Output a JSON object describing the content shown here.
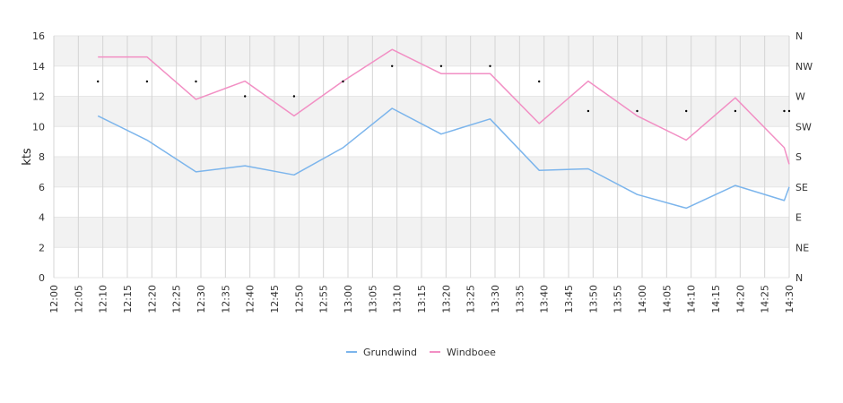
{
  "chart_data": {
    "type": "line",
    "ylabel": "kts",
    "ylim": [
      0,
      16
    ],
    "yticks": [
      "0",
      "2",
      "4",
      "6",
      "8",
      "10",
      "12",
      "14",
      "16"
    ],
    "x_ticks": [
      "12:00",
      "12:05",
      "12:10",
      "12:15",
      "12:20",
      "12:25",
      "12:30",
      "12:35",
      "12:40",
      "12:45",
      "12:50",
      "12:55",
      "13:00",
      "13:05",
      "13:10",
      "13:15",
      "13:20",
      "13:25",
      "13:30",
      "13:35",
      "13:40",
      "13:45",
      "13:50",
      "13:55",
      "14:00",
      "14:05",
      "14:10",
      "14:15",
      "14:20",
      "14:25",
      "14:30"
    ],
    "direction_axis": {
      "labels": [
        "N",
        "NE",
        "E",
        "SE",
        "S",
        "SW",
        "W",
        "NW",
        "N"
      ],
      "degrees": [
        0,
        45,
        90,
        135,
        180,
        225,
        270,
        315,
        360
      ]
    },
    "series": [
      {
        "name": "Grundwind",
        "color": "#7cb5ec",
        "points": [
          [
            "12:09",
            10.7
          ],
          [
            "12:19",
            9.1
          ],
          [
            "12:29",
            7.0
          ],
          [
            "12:39",
            7.4
          ],
          [
            "12:49",
            6.8
          ],
          [
            "12:59",
            8.6
          ],
          [
            "13:09",
            11.2
          ],
          [
            "13:19",
            9.5
          ],
          [
            "13:29",
            10.5
          ],
          [
            "13:39",
            7.1
          ],
          [
            "13:49",
            7.2
          ],
          [
            "13:59",
            5.5
          ],
          [
            "14:09",
            4.6
          ],
          [
            "14:19",
            6.1
          ],
          [
            "14:29",
            5.1
          ],
          [
            "14:30",
            6.0
          ]
        ]
      },
      {
        "name": "Windboee",
        "color": "#f28fc4",
        "points": [
          [
            "12:09",
            14.6
          ],
          [
            "12:19",
            14.6
          ],
          [
            "12:29",
            11.8
          ],
          [
            "12:39",
            13.0
          ],
          [
            "12:49",
            10.7
          ],
          [
            "12:59",
            13.0
          ],
          [
            "13:09",
            15.1
          ],
          [
            "13:19",
            13.5
          ],
          [
            "13:29",
            13.5
          ],
          [
            "13:39",
            10.2
          ],
          [
            "13:49",
            13.0
          ],
          [
            "13:59",
            10.7
          ],
          [
            "14:09",
            9.1
          ],
          [
            "14:19",
            11.9
          ],
          [
            "14:29",
            8.6
          ],
          [
            "14:30",
            7.5
          ]
        ]
      }
    ],
    "direction_points": [
      [
        "12:09",
        292
      ],
      [
        "12:19",
        292
      ],
      [
        "12:29",
        292
      ],
      [
        "12:39",
        270
      ],
      [
        "12:49",
        270
      ],
      [
        "12:59",
        292
      ],
      [
        "13:09",
        315
      ],
      [
        "13:19",
        315
      ],
      [
        "13:29",
        315
      ],
      [
        "13:39",
        292
      ],
      [
        "13:49",
        248
      ],
      [
        "13:59",
        248
      ],
      [
        "14:09",
        248
      ],
      [
        "14:19",
        248
      ],
      [
        "14:29",
        248
      ],
      [
        "14:30",
        248
      ]
    ],
    "grid": true,
    "legend": "bottom-center"
  },
  "legend": {
    "items": [
      {
        "label": "Grundwind",
        "color": "#7cb5ec"
      },
      {
        "label": "Windboee",
        "color": "#f28fc4"
      }
    ]
  }
}
